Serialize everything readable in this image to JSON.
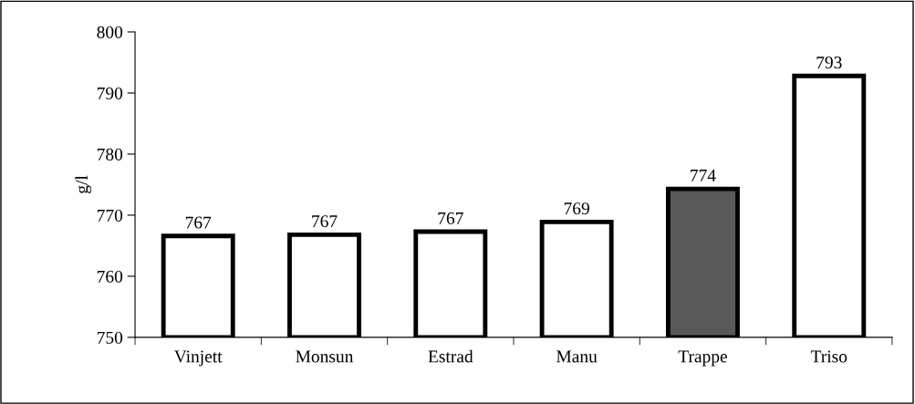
{
  "chart_data": {
    "type": "bar",
    "ylabel": "g/l",
    "categories": [
      "Vinjett",
      "Monsun",
      "Estrad",
      "Manu",
      "Trappe",
      "Triso"
    ],
    "values": [
      766.6,
      766.8,
      767.3,
      768.9,
      774.3,
      792.8
    ],
    "value_labels": [
      "767",
      "767",
      "767",
      "769",
      "774",
      "793"
    ],
    "colors": [
      "#ffffff",
      "#ffffff",
      "#ffffff",
      "#ffffff",
      "#595959",
      "#ffffff"
    ],
    "ylim": [
      750,
      800
    ],
    "yticks": [
      750,
      760,
      770,
      780,
      790,
      800
    ],
    "grid": false
  }
}
